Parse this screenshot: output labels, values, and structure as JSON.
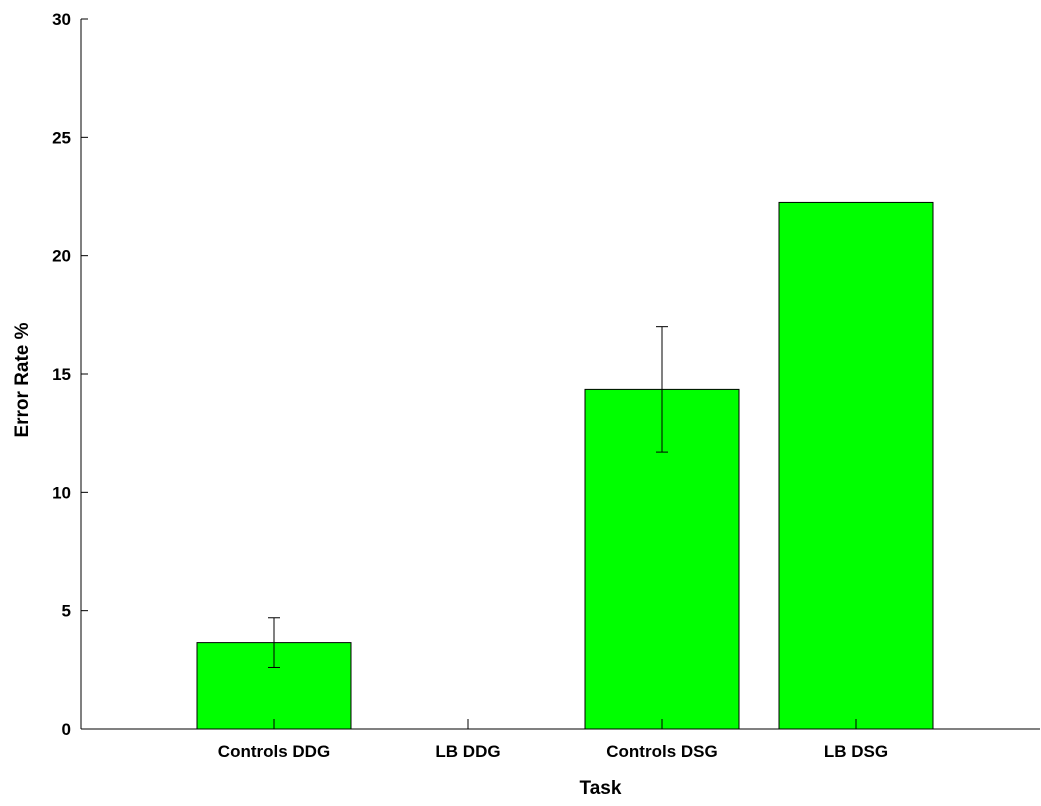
{
  "chart_data": {
    "type": "bar",
    "title": "",
    "xlabel": "Task",
    "ylabel": "Error Rate %",
    "categories": [
      "Controls DDG",
      "LB DDG",
      "Controls DSG",
      "LB DSG"
    ],
    "values": [
      3.65,
      0,
      14.35,
      22.25
    ],
    "error": [
      1.05,
      0,
      2.65,
      0
    ],
    "ylim": [
      0,
      30
    ],
    "yticks": [
      "0",
      "5",
      "10",
      "15",
      "20",
      "25",
      "30"
    ],
    "bar_color": "#00ff00",
    "grid": false,
    "legend": "none"
  }
}
